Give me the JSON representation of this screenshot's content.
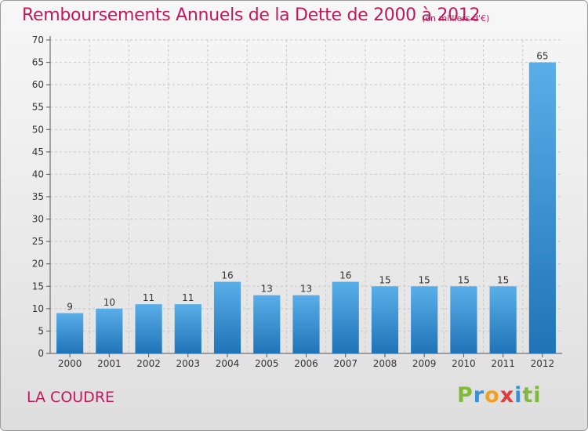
{
  "header": {
    "title": "Remboursements Annuels de la Dette de 2000 à 2012",
    "subtitle": "(en milliers d'€)"
  },
  "footer": {
    "commune": "LA COUDRE",
    "logo": [
      "P",
      "r",
      "o",
      "x",
      "i",
      "ti"
    ]
  },
  "colors": {
    "accent": "#c2185b",
    "bar_top": "#5aaee8",
    "bar_bottom": "#1f74b8"
  },
  "chart_data": {
    "type": "bar",
    "title": "Remboursements Annuels de la Dette de 2000 à 2012",
    "xlabel": "",
    "ylabel": "",
    "categories": [
      "2000",
      "2001",
      "2002",
      "2003",
      "2004",
      "2005",
      "2006",
      "2007",
      "2008",
      "2009",
      "2010",
      "2011",
      "2012"
    ],
    "values": [
      9,
      10,
      11,
      11,
      16,
      13,
      13,
      16,
      15,
      15,
      15,
      15,
      65
    ],
    "ylim": [
      0,
      70
    ],
    "yticks": [
      0,
      5,
      10,
      15,
      20,
      25,
      30,
      35,
      40,
      45,
      50,
      55,
      60,
      65,
      70
    ],
    "grid": true
  }
}
